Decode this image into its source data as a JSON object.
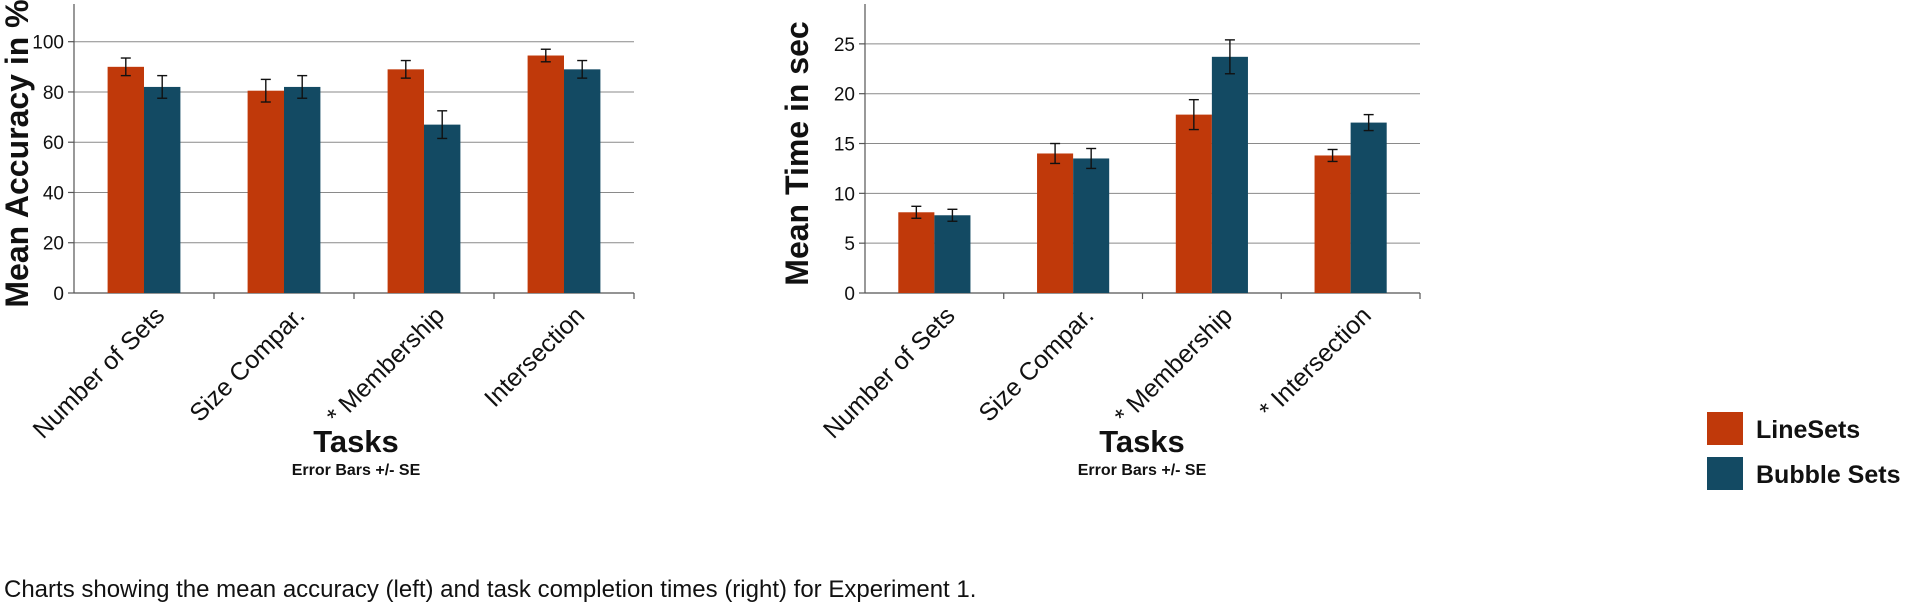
{
  "chart_data": [
    {
      "type": "bar",
      "categories": [
        "Number of Sets",
        "Size Compar.",
        "* Membership",
        "Intersection"
      ],
      "series": [
        {
          "name": "LineSets",
          "values": [
            90,
            80.5,
            89,
            94.5
          ],
          "error": [
            3.5,
            4.5,
            3.5,
            2.5
          ],
          "color": "#c0390a"
        },
        {
          "name": "Bubble Sets",
          "values": [
            82,
            82,
            67,
            89
          ],
          "error": [
            4.5,
            4.5,
            5.5,
            3.5
          ],
          "color": "#134a63"
        }
      ],
      "ylabel": "Mean Accuracy in %",
      "xlabel": "Tasks",
      "note": "Error Bars +/-  SE",
      "ylim": [
        0,
        115
      ],
      "yticks": [
        0,
        20,
        40,
        60,
        80,
        100
      ],
      "grid": true
    },
    {
      "type": "bar",
      "categories": [
        "Number of Sets",
        "Size Compar.",
        "* Membership",
        "* Intersection"
      ],
      "series": [
        {
          "name": "LineSets",
          "values": [
            8.1,
            14,
            17.9,
            13.8
          ],
          "error": [
            0.6,
            1.0,
            1.5,
            0.6
          ],
          "color": "#c0390a"
        },
        {
          "name": "Bubble Sets",
          "values": [
            7.8,
            13.5,
            23.7,
            17.1
          ],
          "error": [
            0.6,
            1.0,
            1.7,
            0.8
          ],
          "color": "#134a63"
        }
      ],
      "ylabel": "Mean Time in sec",
      "xlabel": "Tasks",
      "note": "Error Bars +/-  SE",
      "ylim": [
        0,
        29
      ],
      "yticks": [
        0,
        5,
        10,
        15,
        20,
        25
      ],
      "grid": true
    }
  ],
  "legend": {
    "position": "bottom-right",
    "items": [
      "LineSets",
      "Bubble Sets"
    ]
  },
  "caption": "Charts showing the mean accuracy (left) and task completion times (right) for Experiment 1."
}
